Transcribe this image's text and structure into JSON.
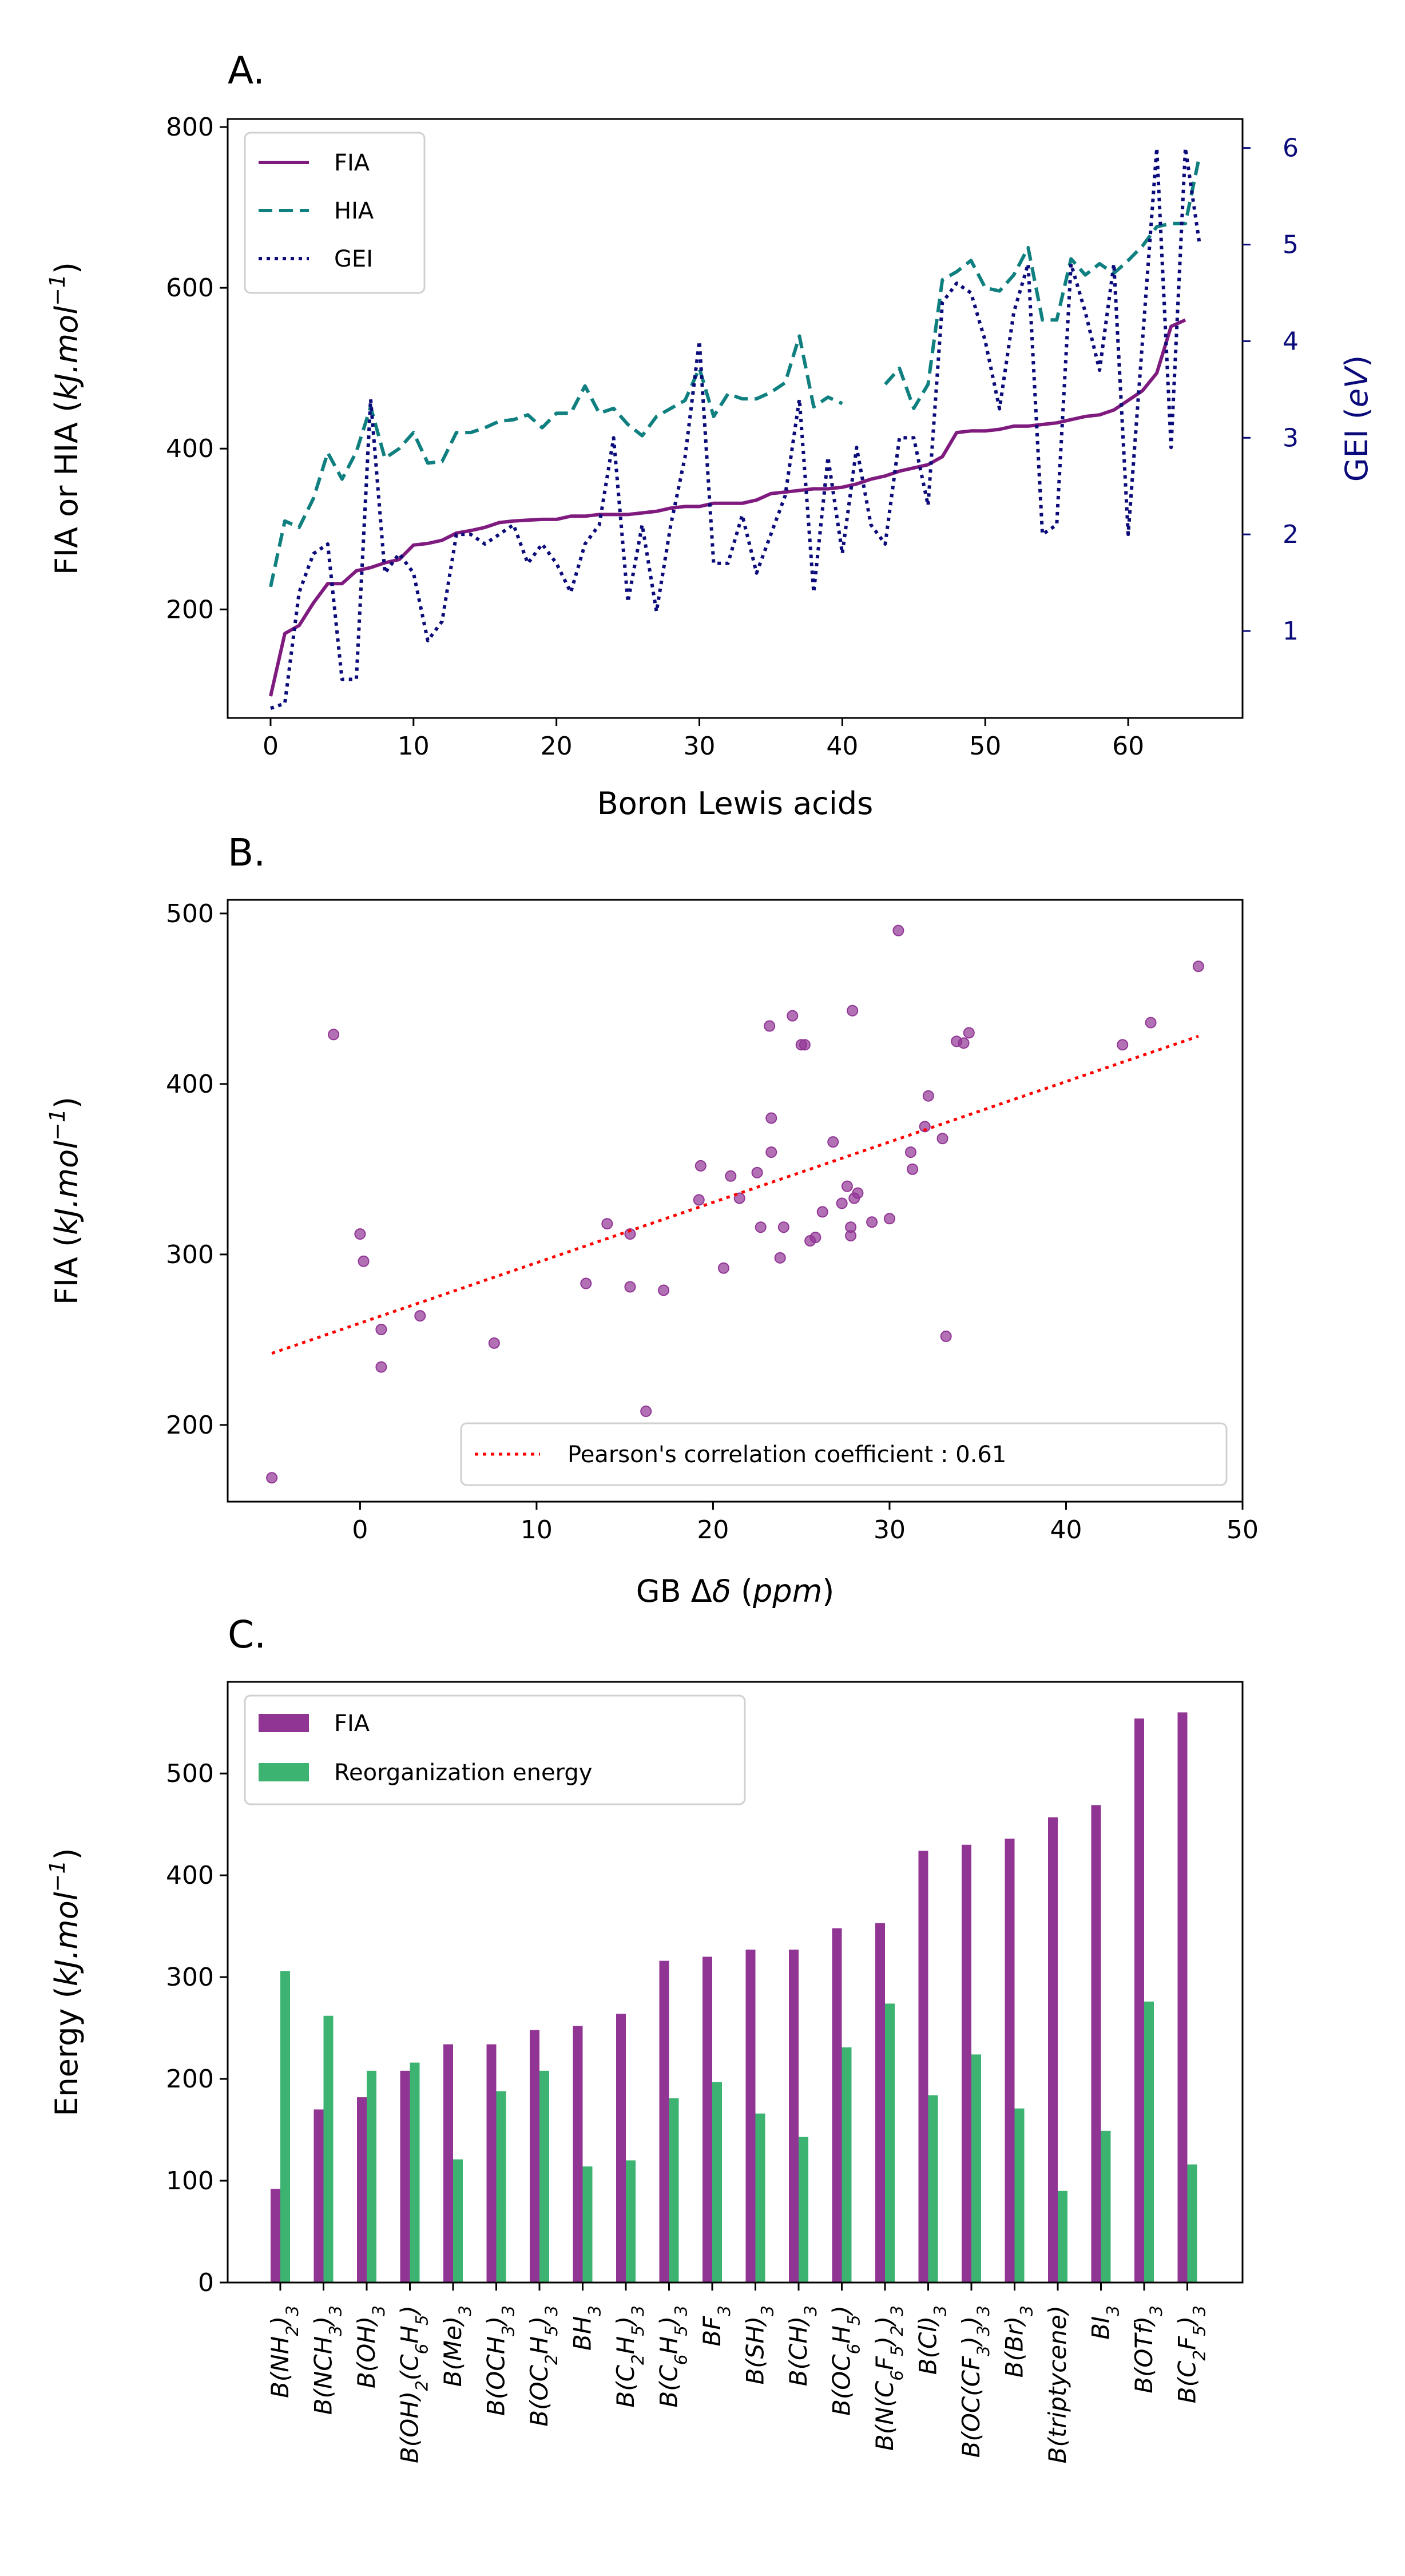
{
  "colors": {
    "fia": "#7f1a7f",
    "hia": "#0f7f7f",
    "gei": "#0a0a7a",
    "bar_fia": "#913595",
    "bar_reorg": "#3cb371",
    "fit": "#ff0000"
  },
  "chart_data": [
    {
      "panel_label": "A.",
      "type": "line",
      "xlabel": "Boron Lewis acids",
      "ylabel": "FIA or HIA (kJ.mol⁻¹)",
      "ylabel_right": "GEI (eV)",
      "xlim": [
        -3,
        68
      ],
      "ylim": [
        65,
        810
      ],
      "ylim_right": [
        0.1,
        6.3
      ],
      "xticks": [
        0,
        10,
        20,
        30,
        40,
        50,
        60
      ],
      "yticks": [
        200,
        400,
        600,
        800
      ],
      "yticks_right": [
        1,
        2,
        3,
        4,
        5,
        6
      ],
      "legend": {
        "position": "upper-left",
        "entries": [
          "FIA",
          "HIA",
          "GEI"
        ]
      },
      "series": [
        {
          "name": "FIA",
          "axis": "left",
          "style": "solid",
          "x": [
            0,
            1,
            2,
            3,
            4,
            5,
            6,
            7,
            8,
            9,
            10,
            11,
            12,
            13,
            14,
            15,
            16,
            17,
            18,
            19,
            20,
            21,
            22,
            23,
            24,
            25,
            26,
            27,
            28,
            29,
            30,
            31,
            32,
            33,
            34,
            35,
            36,
            37,
            38,
            39,
            40,
            41,
            42,
            43,
            44,
            45,
            46,
            47,
            48,
            49,
            50,
            51,
            52,
            53,
            54,
            55,
            56,
            57,
            58,
            59,
            60,
            61,
            62,
            63,
            64
          ],
          "values": [
            92,
            170,
            180,
            208,
            232,
            232,
            248,
            252,
            258,
            262,
            280,
            282,
            286,
            295,
            298,
            302,
            308,
            310,
            311,
            312,
            312,
            316,
            316,
            318,
            318,
            318,
            320,
            322,
            326,
            328,
            328,
            332,
            332,
            332,
            336,
            344,
            346,
            348,
            350,
            350,
            352,
            356,
            362,
            366,
            372,
            376,
            380,
            390,
            420,
            422,
            422,
            424,
            428,
            428,
            430,
            432,
            436,
            440,
            442,
            448,
            460,
            472,
            494,
            552,
            560
          ]
        },
        {
          "name": "HIA",
          "axis": "left",
          "style": "dashed",
          "x": [
            0,
            1,
            2,
            3,
            4,
            5,
            6,
            7,
            8,
            9,
            10,
            11,
            12,
            13,
            14,
            15,
            16,
            17,
            18,
            19,
            20,
            21,
            22,
            23,
            24,
            25,
            26,
            27,
            28,
            29,
            30,
            31,
            32,
            33,
            34,
            35,
            36,
            37,
            38,
            39,
            40,
            null,
            43,
            44,
            45,
            46,
            47,
            48,
            49,
            50,
            51,
            52,
            53,
            54,
            55,
            56,
            57,
            58,
            59,
            60,
            61,
            62,
            63,
            64,
            65
          ],
          "values": [
            228,
            310,
            302,
            338,
            395,
            362,
            396,
            452,
            388,
            400,
            420,
            382,
            384,
            420,
            420,
            426,
            434,
            436,
            442,
            426,
            444,
            444,
            478,
            444,
            450,
            430,
            416,
            440,
            450,
            460,
            500,
            440,
            468,
            462,
            462,
            470,
            482,
            540,
            452,
            464,
            456,
            null,
            480,
            500,
            450,
            480,
            610,
            620,
            634,
            600,
            596,
            616,
            650,
            560,
            560,
            636,
            616,
            630,
            618,
            634,
            652,
            676,
            680,
            680,
            765
          ]
        },
        {
          "name": "GEI",
          "axis": "right",
          "style": "dotted",
          "x": [
            0,
            1,
            2,
            3,
            4,
            5,
            6,
            7,
            8,
            9,
            10,
            11,
            12,
            13,
            14,
            15,
            16,
            17,
            18,
            19,
            20,
            21,
            22,
            23,
            24,
            25,
            26,
            27,
            28,
            29,
            30,
            31,
            32,
            33,
            34,
            35,
            36,
            37,
            38,
            39,
            40,
            41,
            42,
            43,
            44,
            45,
            46,
            47,
            48,
            49,
            50,
            51,
            52,
            53,
            54,
            55,
            56,
            57,
            58,
            59,
            60,
            61,
            62,
            63,
            64,
            65
          ],
          "values": [
            0.2,
            0.25,
            1.4,
            1.8,
            1.9,
            0.5,
            0.5,
            3.4,
            1.6,
            1.8,
            1.6,
            0.9,
            1.1,
            2.0,
            2.0,
            1.9,
            2.0,
            2.1,
            1.7,
            1.9,
            1.7,
            1.4,
            1.9,
            2.1,
            3.0,
            1.3,
            2.1,
            1.2,
            2.1,
            2.8,
            4.0,
            1.7,
            1.7,
            2.2,
            1.6,
            2.0,
            2.4,
            3.4,
            1.4,
            2.8,
            1.8,
            2.9,
            2.1,
            1.9,
            3.0,
            3.0,
            2.3,
            4.4,
            4.6,
            4.5,
            4.0,
            3.3,
            4.3,
            4.8,
            2.0,
            2.1,
            4.8,
            4.3,
            3.7,
            4.8,
            2.0,
            4.0,
            6.0,
            2.9,
            6.0,
            5.0
          ]
        }
      ]
    },
    {
      "panel_label": "B.",
      "type": "scatter",
      "xlabel": "GB Δδ (ppm)",
      "ylabel": "FIA (kJ.mol⁻¹)",
      "xlim": [
        -7.5,
        50
      ],
      "ylim": [
        155,
        508
      ],
      "xticks": [
        0,
        10,
        20,
        30,
        40,
        50
      ],
      "yticks": [
        200,
        300,
        400,
        500
      ],
      "legend": {
        "position": "lower-right",
        "entries": [
          "Pearson's correlation coefficient : 0.61"
        ]
      },
      "fit": {
        "x": [
          -5,
          47.5
        ],
        "y": [
          242,
          428
        ]
      },
      "points": [
        [
          -5,
          169
        ],
        [
          -1.5,
          429
        ],
        [
          0,
          312
        ],
        [
          0.2,
          296
        ],
        [
          1.2,
          256
        ],
        [
          1.2,
          234
        ],
        [
          3.4,
          264
        ],
        [
          7.6,
          248
        ],
        [
          12.8,
          283
        ],
        [
          14,
          318
        ],
        [
          15.3,
          312
        ],
        [
          15.3,
          281
        ],
        [
          16.2,
          208
        ],
        [
          17.2,
          279
        ],
        [
          19.2,
          332
        ],
        [
          19.3,
          352
        ],
        [
          20.6,
          292
        ],
        [
          21,
          346
        ],
        [
          21.5,
          333
        ],
        [
          22.5,
          348
        ],
        [
          22.7,
          316
        ],
        [
          23.2,
          434
        ],
        [
          23.3,
          380
        ],
        [
          23.3,
          360
        ],
        [
          23.8,
          298
        ],
        [
          24,
          316
        ],
        [
          24.5,
          440
        ],
        [
          25,
          423
        ],
        [
          25.2,
          423
        ],
        [
          25.5,
          308
        ],
        [
          25.8,
          310
        ],
        [
          26.2,
          325
        ],
        [
          26.8,
          366
        ],
        [
          27.3,
          330
        ],
        [
          27.6,
          340
        ],
        [
          27.8,
          316
        ],
        [
          27.8,
          311
        ],
        [
          27.9,
          443
        ],
        [
          28,
          333
        ],
        [
          28.2,
          336
        ],
        [
          29,
          319
        ],
        [
          30,
          321
        ],
        [
          30.5,
          490
        ],
        [
          31.2,
          360
        ],
        [
          31.3,
          350
        ],
        [
          32,
          375
        ],
        [
          32.2,
          393
        ],
        [
          33,
          368
        ],
        [
          33.2,
          252
        ],
        [
          33.8,
          425
        ],
        [
          34.2,
          424
        ],
        [
          34.5,
          430
        ],
        [
          43.2,
          423
        ],
        [
          44.8,
          436
        ],
        [
          47.5,
          469
        ]
      ]
    },
    {
      "panel_label": "C.",
      "type": "bar",
      "ylabel": "Energy (kJ.mol⁻¹)",
      "ylim": [
        0,
        590
      ],
      "yticks": [
        0,
        100,
        200,
        300,
        400,
        500
      ],
      "legend": {
        "position": "upper-left",
        "entries": [
          "FIA",
          "Reorganization energy"
        ]
      },
      "categories": [
        {
          "label": "B(NH",
          "sub1": "2",
          "tail": ")",
          "sub2": "3"
        },
        {
          "label": "B(NCH",
          "sub1": "3",
          "tail": ")",
          "sub2": "3"
        },
        {
          "label": "B(OH)",
          "sub1": "3",
          "tail": "",
          "sub2": ""
        },
        {
          "label": "B(OH)",
          "sub1": "2",
          "tail": "(C",
          "sub2": "6",
          "tail2": "H",
          "sub3": "5",
          "tail3": ")"
        },
        {
          "label": "B(Me)",
          "sub1": "3",
          "tail": "",
          "sub2": ""
        },
        {
          "label": "B(OCH",
          "sub1": "3",
          "tail": ")",
          "sub2": "3"
        },
        {
          "label": "B(OC",
          "sub1": "2",
          "tail": "H",
          "sub2": "5",
          "tail2": ")",
          "sub3": "3"
        },
        {
          "label": "BH",
          "sub1": "3",
          "tail": "",
          "sub2": ""
        },
        {
          "label": "B(C",
          "sub1": "2",
          "tail": "H",
          "sub2": "5",
          "tail2": ")",
          "sub3": "3"
        },
        {
          "label": "B(C",
          "sub1": "6",
          "tail": "H",
          "sub2": "5",
          "tail2": ")",
          "sub3": "3"
        },
        {
          "label": "BF",
          "sub1": "3",
          "tail": "",
          "sub2": ""
        },
        {
          "label": "B(SH)",
          "sub1": "3",
          "tail": "",
          "sub2": ""
        },
        {
          "label": "B(CH)",
          "sub1": "3",
          "tail": "",
          "sub2": ""
        },
        {
          "label": "B(OC",
          "sub1": "6",
          "tail": "H",
          "sub2": "5",
          "tail2": ")"
        },
        {
          "label": "B(N(C",
          "sub1": "6",
          "tail": "F",
          "sub2": "5",
          "tail2": ")",
          "sub3": "2",
          "tail3": ")",
          "sub4": "3"
        },
        {
          "label": "B(Cl)",
          "sub1": "3",
          "tail": "",
          "sub2": ""
        },
        {
          "label": "B(OC(CF",
          "sub1": "3",
          "tail": ")",
          "sub2": "3",
          "tail2": ")",
          "sub3": "3"
        },
        {
          "label": "B(Br)",
          "sub1": "3",
          "tail": "",
          "sub2": ""
        },
        {
          "label": "B(triptycene)",
          "sub1": "",
          "tail": "",
          "sub2": ""
        },
        {
          "label": "BI",
          "sub1": "3",
          "tail": "",
          "sub2": ""
        },
        {
          "label": "B(OTf)",
          "sub1": "3",
          "tail": "",
          "sub2": ""
        },
        {
          "label": "B(C",
          "sub1": "2",
          "tail": "F",
          "sub2": "5",
          "tail2": ")",
          "sub3": "3"
        }
      ],
      "series": [
        {
          "name": "FIA",
          "values": [
            92,
            170,
            182,
            208,
            234,
            234,
            248,
            252,
            264,
            316,
            320,
            327,
            327,
            348,
            353,
            424,
            430,
            436,
            457,
            469,
            554,
            560
          ]
        },
        {
          "name": "Reorganization energy",
          "values": [
            306,
            262,
            208,
            216,
            121,
            188,
            208,
            114,
            120,
            181,
            197,
            166,
            143,
            231,
            274,
            184,
            224,
            171,
            90,
            149,
            276,
            116
          ]
        }
      ]
    }
  ]
}
